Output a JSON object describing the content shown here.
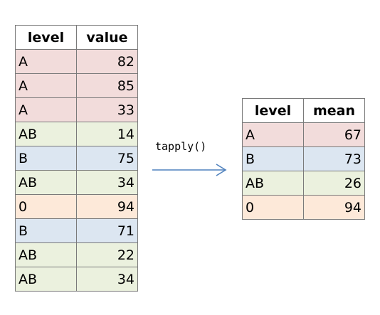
{
  "colors": {
    "A": "#f2dcdb",
    "AB": "#ebf1de",
    "B": "#dce6f1",
    "0": "#fde9d9",
    "arrow": "#4f81bd",
    "border": "#7a7a7a"
  },
  "input": {
    "headers": [
      "level",
      "value"
    ],
    "rows": [
      {
        "level": "A",
        "value": "82"
      },
      {
        "level": "A",
        "value": "85"
      },
      {
        "level": "A",
        "value": "33"
      },
      {
        "level": "AB",
        "value": "14"
      },
      {
        "level": "B",
        "value": "75"
      },
      {
        "level": "AB",
        "value": "34"
      },
      {
        "level": "0",
        "value": "94"
      },
      {
        "level": "B",
        "value": "71"
      },
      {
        "level": "AB",
        "value": "22"
      },
      {
        "level": "AB",
        "value": "34"
      }
    ]
  },
  "function_label": "tapply()",
  "output": {
    "headers": [
      "level",
      "mean"
    ],
    "rows": [
      {
        "level": "A",
        "value": "67"
      },
      {
        "level": "B",
        "value": "73"
      },
      {
        "level": "AB",
        "value": "26"
      },
      {
        "level": "0",
        "value": "94"
      }
    ]
  }
}
